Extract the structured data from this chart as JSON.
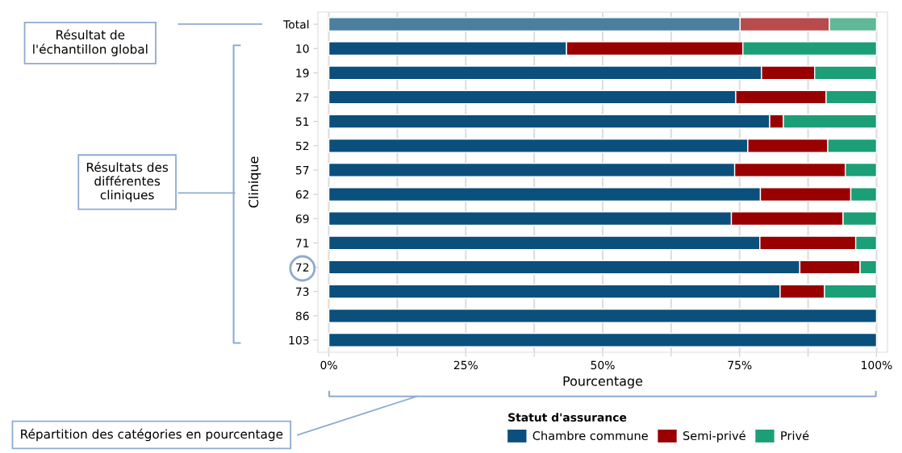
{
  "chart_data": {
    "type": "bar",
    "orientation": "horizontal",
    "stacked": true,
    "categories": [
      "Total",
      "10",
      "19",
      "27",
      "51",
      "52",
      "57",
      "62",
      "69",
      "71",
      "72",
      "73",
      "86",
      "103"
    ],
    "series": [
      {
        "name": "Chambre commune",
        "color": "#0b4f7c",
        "colors": [
          "#4a7fa0",
          "#0b4f7c",
          "#0b4f7c",
          "#0b4f7c",
          "#0b4f7c",
          "#0b4f7c",
          "#0b4f7c",
          "#0b4f7c",
          "#0b4f7c",
          "#0b4f7c",
          "#0b4f7c",
          "#0b4f7c",
          "#0b4f7c",
          "#0b4f7c"
        ],
        "values": [
          75.1,
          43.4,
          79.0,
          74.3,
          80.5,
          76.5,
          74.1,
          78.8,
          73.5,
          78.7,
          86.0,
          82.4,
          100,
          100
        ]
      },
      {
        "name": "Semi-privé",
        "color": "#990000",
        "colors": [
          "#b84c4c",
          "#990000",
          "#990000",
          "#990000",
          "#990000",
          "#990000",
          "#990000",
          "#990000",
          "#990000",
          "#990000",
          "#990000",
          "#990000",
          "#990000",
          "#990000"
        ],
        "values": [
          16.3,
          32.2,
          9.7,
          16.5,
          2.5,
          14.6,
          20.2,
          16.5,
          20.4,
          17.5,
          11.0,
          8.1,
          0,
          0
        ]
      },
      {
        "name": "Privé",
        "color": "#1c9e77",
        "colors": [
          "#5fb898",
          "#1c9e77",
          "#1c9e77",
          "#1c9e77",
          "#1c9e77",
          "#1c9e77",
          "#1c9e77",
          "#1c9e77",
          "#1c9e77",
          "#1c9e77",
          "#1c9e77",
          "#1c9e77",
          "#1c9e77",
          "#1c9e77"
        ],
        "values": [
          8.6,
          24.4,
          11.3,
          9.2,
          17.0,
          8.9,
          5.7,
          4.7,
          6.1,
          3.8,
          3.0,
          9.5,
          0,
          0
        ]
      }
    ],
    "xlabel": "Pourcentage",
    "ylabel": "Clinique",
    "legend_title": "Statut d'assurance",
    "legend": "bottom",
    "xlim": [
      -2,
      102
    ],
    "xticks": [
      {
        "value": 0,
        "label": "0%"
      },
      {
        "value": 12.5,
        "label": null
      },
      {
        "value": 25,
        "label": "25%"
      },
      {
        "value": 37.5,
        "label": null
      },
      {
        "value": 50,
        "label": "50%"
      },
      {
        "value": 62.5,
        "label": null
      },
      {
        "value": 75,
        "label": "75%"
      },
      {
        "value": 87.5,
        "label": null
      },
      {
        "value": 100,
        "label": "100%"
      }
    ],
    "grid": "x",
    "annotations": [
      "Résultat de l'échantillon global",
      "Résultats des différentes cliniques",
      "Répartition des catégories en pourcentage"
    ]
  }
}
